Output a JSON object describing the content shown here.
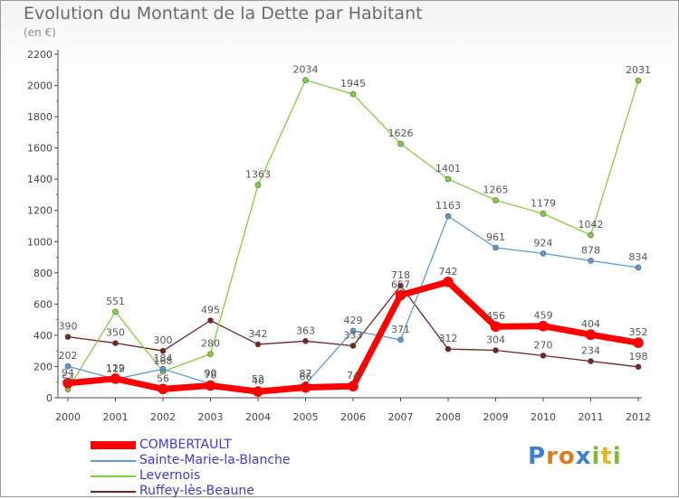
{
  "header": {
    "title": "Evolution du Montant de la Dette par Habitant",
    "subtitle": "(en €)"
  },
  "logo": {
    "text": "Proxiti"
  },
  "chart_data": {
    "type": "line",
    "x": [
      "2000",
      "2001",
      "2002",
      "2003",
      "2004",
      "2005",
      "2006",
      "2007",
      "2008",
      "2009",
      "2010",
      "2011",
      "2012"
    ],
    "ylim": [
      0,
      2200
    ],
    "yticks": [
      0,
      200,
      400,
      600,
      800,
      1000,
      1200,
      1400,
      1600,
      1800,
      2000,
      2200
    ],
    "grid": false,
    "legend": "bottom-left",
    "series": [
      {
        "name": "COMBERTAULT",
        "color": "#ff0000",
        "values": [
          94,
          122,
          56,
          78,
          40,
          66,
          74,
          657,
          742,
          456,
          459,
          404,
          352
        ],
        "labels": [
          "94",
          "122",
          "56",
          "78",
          "40",
          "66",
          "74",
          "657",
          "742",
          "456",
          "459",
          "404",
          "352"
        ]
      },
      {
        "name": "Sainte-Marie-la-Blanche",
        "color": "#5b9bd5",
        "values": [
          202,
          119,
          184,
          90,
          52,
          87,
          429,
          371,
          1163,
          961,
          924,
          878,
          834
        ],
        "labels": [
          "202",
          "119",
          "184",
          "90",
          "52",
          "87",
          "429",
          "371",
          "1163",
          "961",
          "924",
          "878",
          "834"
        ]
      },
      {
        "name": "Levernois",
        "color": "#7fd13b",
        "values": [
          54,
          551,
          168,
          280,
          1363,
          2034,
          1945,
          1626,
          1401,
          1265,
          1179,
          1042,
          2031
        ],
        "labels": [
          "54",
          "551",
          "168",
          "280",
          "1363",
          "2034",
          "1945",
          "1626",
          "1401",
          "1265",
          "1179",
          "1042",
          "2031"
        ]
      },
      {
        "name": "Ruffey-lès-Beaune",
        "color": "#7a2020",
        "values": [
          390,
          350,
          300,
          495,
          342,
          363,
          333,
          718,
          312,
          304,
          270,
          234,
          198
        ],
        "labels": [
          "390",
          "350",
          "300",
          "495",
          "342",
          "363",
          "333",
          "718",
          "312",
          "304",
          "270",
          "234",
          "198"
        ]
      }
    ]
  }
}
